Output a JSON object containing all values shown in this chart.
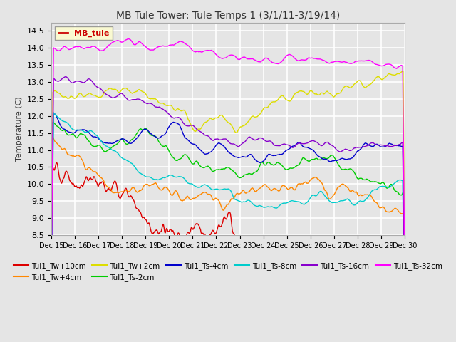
{
  "title": "MB Tule Tower: Tule Temps 1 (3/1/11-3/19/14)",
  "ylabel": "Temperature (C)",
  "ylim": [
    8.5,
    14.75
  ],
  "yticks": [
    8.5,
    9.0,
    9.5,
    10.0,
    10.5,
    11.0,
    11.5,
    12.0,
    12.5,
    13.0,
    13.5,
    14.0,
    14.5
  ],
  "background_color": "#e5e5e5",
  "plot_bg_color": "#e5e5e5",
  "grid_color": "#ffffff",
  "series": [
    {
      "label": "Tul1_Tw+10cm",
      "color": "#dd0000"
    },
    {
      "label": "Tul1_Tw+4cm",
      "color": "#ff8800"
    },
    {
      "label": "Tul1_Tw+2cm",
      "color": "#dddd00"
    },
    {
      "label": "Tul1_Ts-2cm",
      "color": "#00cc00"
    },
    {
      "label": "Tul1_Ts-4cm",
      "color": "#0000cc"
    },
    {
      "label": "Tul1_Ts-8cm",
      "color": "#00cccc"
    },
    {
      "label": "Tul1_Ts-16cm",
      "color": "#8800cc"
    },
    {
      "label": "Tul1_Ts-32cm",
      "color": "#ff00ff"
    }
  ],
  "legend_label": "MB_tule",
  "legend_color": "#cc0000",
  "xtick_labels": [
    "Dec 15",
    "Dec 16",
    "Dec 17",
    "Dec 18",
    "Dec 19",
    "Dec 20",
    "Dec 21",
    "Dec 22",
    "Dec 23",
    "Dec 24",
    "Dec 25",
    "Dec 26",
    "Dec 27",
    "Dec 28",
    "Dec 29",
    "Dec 30"
  ]
}
